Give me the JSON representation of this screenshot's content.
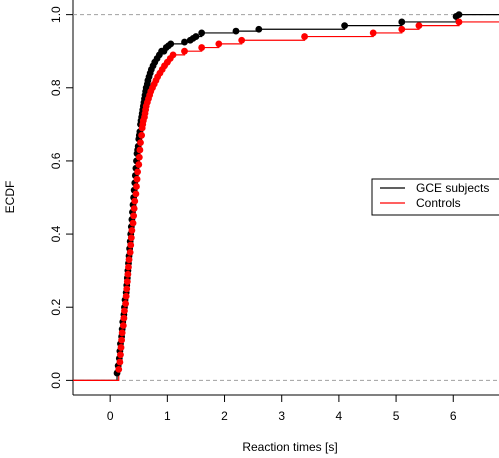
{
  "chart_data": {
    "type": "scatter",
    "subtype": "ecdf-step",
    "title": "",
    "xlabel": "Reaction times [s]",
    "ylabel": "ECDF",
    "xlim": [
      -0.65,
      6.8
    ],
    "ylim": [
      -0.04,
      1.04
    ],
    "x_ticks": [
      0,
      1,
      2,
      3,
      4,
      5,
      6
    ],
    "x_tick_labels": [
      "0",
      "1",
      "2",
      "3",
      "4",
      "5",
      "6"
    ],
    "y_ticks": [
      0.0,
      0.2,
      0.4,
      0.6,
      0.8,
      1.0
    ],
    "y_tick_labels": [
      "0.0",
      "0.2",
      "0.4",
      "0.6",
      "0.8",
      "1.0"
    ],
    "reference_lines": [
      0,
      1
    ],
    "grid": false,
    "legend_position": "right",
    "series": [
      {
        "name": "GCE subjects",
        "color": "#000000",
        "x": [
          0.12,
          0.14,
          0.16,
          0.17,
          0.18,
          0.2,
          0.21,
          0.22,
          0.24,
          0.25,
          0.26,
          0.28,
          0.29,
          0.3,
          0.31,
          0.32,
          0.33,
          0.34,
          0.35,
          0.36,
          0.37,
          0.38,
          0.39,
          0.4,
          0.41,
          0.42,
          0.43,
          0.44,
          0.45,
          0.46,
          0.47,
          0.48,
          0.49,
          0.5,
          0.51,
          0.52,
          0.53,
          0.54,
          0.55,
          0.56,
          0.57,
          0.58,
          0.59,
          0.6,
          0.61,
          0.62,
          0.63,
          0.65,
          0.66,
          0.68,
          0.7,
          0.72,
          0.75,
          0.78,
          0.82,
          0.86,
          0.9,
          0.94,
          0.98,
          1.02,
          1.06,
          1.3,
          1.4,
          1.45,
          1.5,
          1.6,
          2.2,
          2.6,
          4.1,
          5.1,
          6.05,
          6.1
        ],
        "y": [
          0.02,
          0.04,
          0.06,
          0.08,
          0.1,
          0.12,
          0.14,
          0.16,
          0.18,
          0.2,
          0.22,
          0.24,
          0.26,
          0.28,
          0.3,
          0.32,
          0.34,
          0.36,
          0.38,
          0.4,
          0.42,
          0.44,
          0.46,
          0.48,
          0.5,
          0.52,
          0.54,
          0.56,
          0.58,
          0.6,
          0.62,
          0.63,
          0.64,
          0.66,
          0.67,
          0.68,
          0.7,
          0.71,
          0.72,
          0.73,
          0.74,
          0.75,
          0.76,
          0.77,
          0.78,
          0.79,
          0.8,
          0.81,
          0.82,
          0.83,
          0.84,
          0.85,
          0.86,
          0.87,
          0.88,
          0.89,
          0.9,
          0.9,
          0.91,
          0.915,
          0.92,
          0.925,
          0.93,
          0.935,
          0.94,
          0.95,
          0.955,
          0.96,
          0.97,
          0.98,
          0.995,
          1.0
        ]
      },
      {
        "name": "Controls",
        "color": "#ff0000",
        "x": [
          0.15,
          0.17,
          0.18,
          0.19,
          0.2,
          0.21,
          0.23,
          0.24,
          0.25,
          0.27,
          0.28,
          0.29,
          0.3,
          0.31,
          0.32,
          0.33,
          0.35,
          0.36,
          0.37,
          0.38,
          0.4,
          0.41,
          0.42,
          0.43,
          0.45,
          0.46,
          0.47,
          0.48,
          0.5,
          0.51,
          0.52,
          0.53,
          0.55,
          0.56,
          0.57,
          0.58,
          0.6,
          0.61,
          0.62,
          0.63,
          0.65,
          0.67,
          0.69,
          0.71,
          0.74,
          0.77,
          0.8,
          0.83,
          0.87,
          0.91,
          0.95,
          1.0,
          1.05,
          1.1,
          1.3,
          1.6,
          1.9,
          2.3,
          3.4,
          4.6,
          5.1,
          5.4,
          6.1
        ],
        "y": [
          0.03,
          0.05,
          0.07,
          0.09,
          0.11,
          0.13,
          0.15,
          0.17,
          0.19,
          0.21,
          0.23,
          0.25,
          0.27,
          0.29,
          0.31,
          0.33,
          0.35,
          0.37,
          0.39,
          0.41,
          0.43,
          0.45,
          0.47,
          0.49,
          0.51,
          0.53,
          0.55,
          0.57,
          0.59,
          0.61,
          0.63,
          0.65,
          0.67,
          0.69,
          0.7,
          0.71,
          0.72,
          0.73,
          0.74,
          0.75,
          0.76,
          0.77,
          0.78,
          0.79,
          0.8,
          0.81,
          0.82,
          0.83,
          0.84,
          0.85,
          0.86,
          0.87,
          0.88,
          0.89,
          0.9,
          0.91,
          0.92,
          0.93,
          0.94,
          0.95,
          0.96,
          0.97,
          0.98
        ]
      }
    ]
  }
}
